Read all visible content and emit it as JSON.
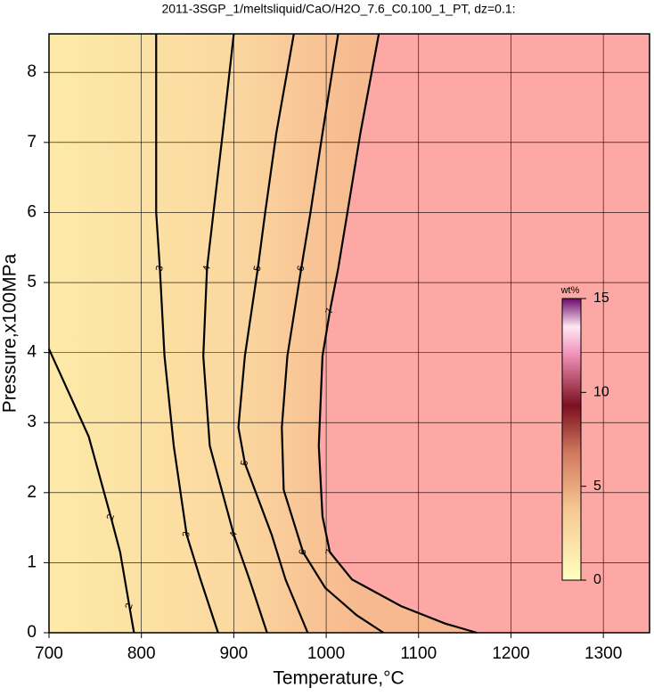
{
  "chart_data": {
    "type": "contour",
    "title": "2011-3SGP_1/meltsliquid/CaO/H2O_7.6_C0.100_1_PT, dz=0.1:",
    "x_label": "Temperature,°C",
    "y_label": "Pressure,x100MPa",
    "xlim": [
      700,
      1350
    ],
    "ylim": [
      0,
      8.55
    ],
    "xticks": [
      700,
      800,
      900,
      1000,
      1100,
      1200,
      1300
    ],
    "yticks": [
      0,
      1,
      2,
      3,
      4,
      5,
      6,
      7,
      8
    ],
    "grid": true,
    "series": [
      {
        "level": 2,
        "color": "#000000",
        "x": [
          700,
          743,
          767,
          777,
          787,
          792
        ],
        "y": [
          4.05,
          2.8,
          1.65,
          1.15,
          0.38,
          0
        ]
      },
      {
        "level": 3,
        "color": "#000000",
        "x": [
          816,
          816,
          820,
          825,
          835,
          849,
          864,
          883
        ],
        "y": [
          8.55,
          6,
          5.2,
          3.95,
          2.67,
          1.4,
          0.76,
          0
        ]
      },
      {
        "level": 4,
        "color": "#000000",
        "x": [
          900,
          888,
          878,
          871,
          867,
          874,
          900,
          917,
          936
        ],
        "y": [
          8.55,
          7.13,
          6,
          5.2,
          3.95,
          2.67,
          1.4,
          0.76,
          0
        ]
      },
      {
        "level": 5,
        "color": "#000000",
        "x": [
          965,
          946,
          934,
          926,
          912,
          905,
          912,
          941,
          956,
          980
        ],
        "y": [
          8.55,
          7.13,
          6,
          5.2,
          3.95,
          2.93,
          2.42,
          1.4,
          0.76,
          0
        ]
      },
      {
        "level": 6,
        "color": "#000000",
        "x": [
          1013,
          996,
          983,
          973,
          958,
          952,
          954,
          975,
          999,
          1033,
          1062
        ],
        "y": [
          8.55,
          7.13,
          6,
          5.2,
          3.95,
          2.93,
          2.04,
          1.15,
          0.64,
          0.25,
          0
        ]
      },
      {
        "level": 7,
        "color": "#000000",
        "x": [
          1057,
          1037,
          1023,
          1013,
          1004,
          996,
          992,
          996,
          1004,
          1028,
          1081,
          1129,
          1163
        ],
        "y": [
          8.55,
          7.13,
          6,
          5.2,
          4.59,
          3.95,
          2.67,
          1.66,
          1.15,
          0.76,
          0.38,
          0.13,
          0
        ]
      }
    ],
    "colorbar": {
      "label": "wt%",
      "lim": [
        0,
        15
      ],
      "ticks": [
        0,
        5,
        10,
        15
      ]
    }
  }
}
